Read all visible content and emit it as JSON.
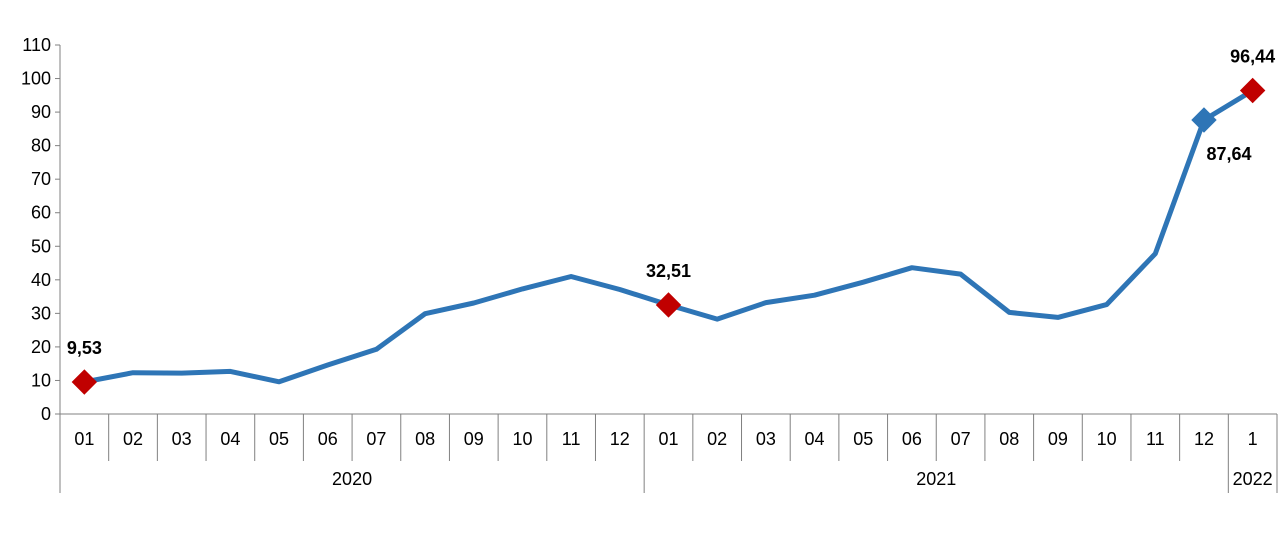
{
  "chart_data": {
    "type": "line",
    "title": "",
    "xlabel": "",
    "ylabel": "",
    "ylim": [
      0,
      110
    ],
    "yticks": [
      "0",
      "10",
      "20",
      "30",
      "40",
      "50",
      "60",
      "70",
      "80",
      "90",
      "100",
      "110"
    ],
    "grid": false,
    "legend": "none",
    "categories": [
      "01",
      "02",
      "03",
      "04",
      "05",
      "06",
      "07",
      "08",
      "09",
      "10",
      "11",
      "12",
      "01",
      "02",
      "03",
      "04",
      "05",
      "06",
      "07",
      "08",
      "09",
      "10",
      "11",
      "12",
      "1"
    ],
    "year_groups": [
      {
        "label": "2020",
        "start": 0,
        "end": 11
      },
      {
        "label": "2021",
        "start": 12,
        "end": 23
      },
      {
        "label": "2022",
        "start": 24,
        "end": 24
      }
    ],
    "series": [
      {
        "values": [
          9.53,
          12.3,
          12.2,
          12.7,
          9.6,
          14.6,
          19.3,
          29.9,
          33.1,
          37.3,
          41.0,
          37.1,
          32.51,
          28.3,
          33.2,
          35.4,
          39.3,
          43.6,
          41.7,
          30.3,
          28.8,
          32.6,
          47.8,
          87.64,
          96.44
        ],
        "color": "#2e75b6"
      }
    ],
    "highlight_points": [
      {
        "index": 0,
        "label": "9,53",
        "marker_color": "#c00000",
        "label_position": "above"
      },
      {
        "index": 12,
        "label": "32,51",
        "marker_color": "#c00000",
        "label_position": "above"
      },
      {
        "index": 23,
        "label": "87,64",
        "marker_color": "#2e75b6",
        "label_position": "below-right"
      },
      {
        "index": 24,
        "label": "96,44",
        "marker_color": "#c00000",
        "label_position": "above"
      }
    ]
  }
}
